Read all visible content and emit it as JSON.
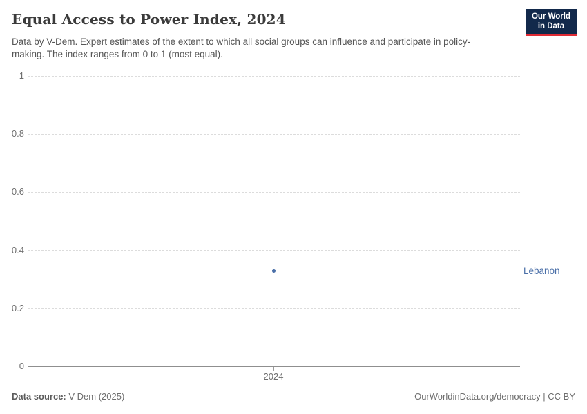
{
  "header": {
    "title": "Equal Access to Power Index, 2024",
    "subtitle": "Data by V-Dem. Expert estimates of the extent to which all social groups can influence and participate in policy-making. The index ranges from 0 to 1 (most equal).",
    "logo": {
      "line1": "Our World",
      "line2": "in Data",
      "bg_color": "#12294b",
      "accent_color": "#e02b35"
    }
  },
  "chart_data": {
    "type": "scatter",
    "title": "Equal Access to Power Index, 2024",
    "x": [
      2024
    ],
    "series": [
      {
        "name": "Lebanon",
        "values": [
          0.33
        ],
        "color": "#4a6fa8"
      }
    ],
    "xlabel": "",
    "ylabel": "",
    "ylim": [
      0,
      1
    ],
    "yticks": [
      1,
      0.8,
      0.6,
      0.4,
      0.2,
      0
    ],
    "ytick_labels": [
      "1",
      "0.8",
      "0.6",
      "0.4",
      "0.2",
      "0"
    ],
    "xtick_labels": [
      "2024"
    ],
    "grid": "horizontal-dashed",
    "legend_position": "entity-label-right"
  },
  "footer": {
    "source_label": "Data source:",
    "source_value": "V-Dem (2025)",
    "credit_url": "OurWorldinData.org/democracy",
    "credit_separator": " | ",
    "credit_license": "CC BY"
  }
}
